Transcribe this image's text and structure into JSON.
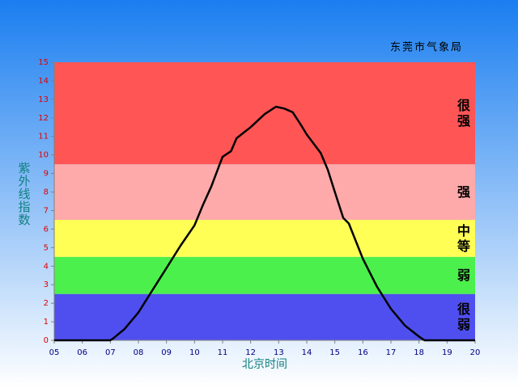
{
  "chart_data": {
    "type": "line",
    "title": "东莞市气象局",
    "y_label": "紫外线指数",
    "x_label": "北京时间",
    "xlim": [
      5,
      20
    ],
    "xticks": [
      {
        "value": 5,
        "label": "05"
      },
      {
        "value": 6,
        "label": "06"
      },
      {
        "value": 7,
        "label": "07"
      },
      {
        "value": 8,
        "label": "08"
      },
      {
        "value": 9,
        "label": "09"
      },
      10,
      11,
      12,
      13,
      14,
      15,
      16,
      17,
      18,
      19,
      20
    ],
    "ylim": [
      0,
      15
    ],
    "yticks": [
      0,
      1,
      2,
      3,
      4,
      5,
      6,
      7,
      8,
      9,
      10,
      11,
      12,
      13,
      14,
      15
    ],
    "bands": [
      {
        "from": 0,
        "to": 2.5,
        "label": "很弱",
        "color": "#4f4ff0"
      },
      {
        "from": 2.5,
        "to": 4.5,
        "label": "弱",
        "color": "#4cf04c"
      },
      {
        "from": 4.5,
        "to": 6.5,
        "label": "中等",
        "color": "#ffff55"
      },
      {
        "from": 6.5,
        "to": 9.5,
        "label": "强",
        "color": "#ffaaaa"
      },
      {
        "from": 9.5,
        "to": 15,
        "label": "很强",
        "color": "#ff5555"
      }
    ],
    "x": [
      5,
      6,
      7,
      7.1,
      7.5,
      8,
      8.5,
      9,
      9.5,
      10,
      10.3,
      10.6,
      10.9,
      11,
      11.3,
      11.5,
      12,
      12.5,
      12.9,
      13.2,
      13.5,
      13.8,
      14,
      14.5,
      14.75,
      15,
      15.3,
      15.5,
      16,
      16.5,
      17,
      17.5,
      18,
      18.2,
      19,
      20
    ],
    "series": [
      {
        "color": "#000000",
        "values": [
          0,
          0,
          0,
          0.1,
          0.6,
          1.5,
          2.7,
          3.9,
          5.1,
          6.2,
          7.3,
          8.3,
          9.5,
          9.9,
          10.2,
          10.9,
          11.5,
          12.2,
          12.6,
          12.5,
          12.3,
          11.6,
          11.1,
          10.1,
          9.2,
          8.0,
          6.6,
          6.3,
          4.4,
          2.9,
          1.7,
          0.8,
          0.2,
          0,
          0,
          0
        ]
      }
    ]
  }
}
